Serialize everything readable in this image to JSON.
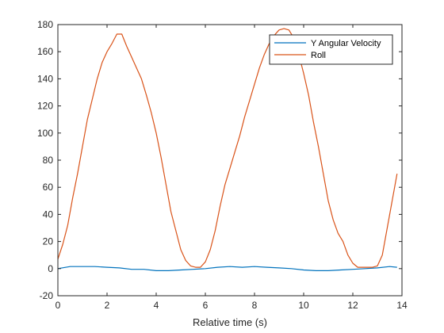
{
  "chart_data": {
    "type": "line",
    "title": "",
    "xlabel": "Relative time (s)",
    "ylabel": "",
    "xlim": [
      0,
      14
    ],
    "ylim": [
      -20,
      180
    ],
    "xticks": [
      0,
      2,
      4,
      6,
      8,
      10,
      12,
      14
    ],
    "yticks": [
      -20,
      0,
      20,
      40,
      60,
      80,
      100,
      120,
      140,
      160,
      180
    ],
    "grid": false,
    "legend_location": "top-right",
    "series": [
      {
        "name": "Y Angular Velocity",
        "color": "#0072BD",
        "x": [
          0,
          0.5,
          1.0,
          1.5,
          2.0,
          2.5,
          3.0,
          3.5,
          4.0,
          4.5,
          5.0,
          5.5,
          6.0,
          6.5,
          7.0,
          7.5,
          8.0,
          8.5,
          9.0,
          9.5,
          10.0,
          10.5,
          11.0,
          11.5,
          12.0,
          12.5,
          13.0,
          13.5,
          13.8
        ],
        "y": [
          0,
          1.5,
          1.5,
          1.5,
          1.0,
          0.5,
          -0.5,
          -0.5,
          -1.5,
          -1.5,
          -1.0,
          -0.5,
          0,
          1.0,
          1.5,
          1.0,
          1.5,
          1.0,
          0.5,
          0,
          -1.0,
          -1.5,
          -1.5,
          -1.0,
          -0.5,
          0,
          0.5,
          1.5,
          1.0
        ]
      },
      {
        "name": "Roll",
        "color": "#D95319",
        "x": [
          0,
          0.2,
          0.4,
          0.6,
          0.8,
          1.0,
          1.2,
          1.4,
          1.6,
          1.8,
          2.0,
          2.2,
          2.4,
          2.6,
          2.8,
          3.0,
          3.2,
          3.4,
          3.6,
          3.8,
          4.0,
          4.2,
          4.4,
          4.6,
          4.8,
          5.0,
          5.2,
          5.4,
          5.6,
          5.8,
          6.0,
          6.2,
          6.4,
          6.6,
          6.8,
          7.0,
          7.2,
          7.4,
          7.6,
          7.8,
          8.0,
          8.2,
          8.4,
          8.6,
          8.8,
          9.0,
          9.2,
          9.4,
          9.6,
          9.8,
          10.0,
          10.2,
          10.4,
          10.6,
          10.8,
          11.0,
          11.2,
          11.4,
          11.6,
          11.8,
          12.0,
          12.2,
          12.4,
          12.6,
          12.8,
          13.0,
          13.2,
          13.4,
          13.6,
          13.8
        ],
        "y": [
          7,
          18,
          32,
          52,
          70,
          90,
          110,
          125,
          140,
          152,
          160,
          166,
          173,
          173,
          164,
          156,
          148,
          140,
          128,
          115,
          100,
          82,
          62,
          42,
          28,
          14,
          6,
          2,
          1,
          1,
          5,
          14,
          28,
          46,
          62,
          74,
          86,
          98,
          112,
          124,
          136,
          148,
          158,
          166,
          172,
          176,
          177,
          176,
          170,
          158,
          144,
          128,
          108,
          90,
          70,
          50,
          36,
          26,
          20,
          10,
          4,
          1,
          1,
          1,
          1,
          2,
          10,
          30,
          50,
          70
        ]
      }
    ]
  }
}
